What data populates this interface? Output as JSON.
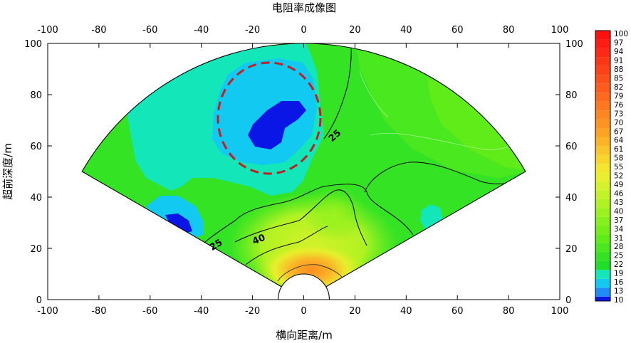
{
  "chart_data": {
    "type": "heatmap",
    "title": "电阻率成像图",
    "xlabel": "横向距离/m",
    "ylabel": "超前深度/m",
    "xlim": [
      -100,
      100
    ],
    "ylim": [
      0,
      100
    ],
    "xticks": [
      -100,
      -80,
      -60,
      -40,
      -20,
      0,
      20,
      40,
      60,
      80,
      100
    ],
    "yticks": [
      0,
      20,
      40,
      60,
      80,
      100
    ],
    "fan": {
      "apex": [
        0,
        0
      ],
      "radius": 100,
      "half_angle_deg": 60,
      "inner_radius": 10
    },
    "colorbar": {
      "ticks": [
        10,
        13,
        16,
        19,
        22,
        25,
        28,
        31,
        34,
        37,
        40,
        43,
        46,
        49,
        52,
        55,
        58,
        61,
        64,
        67,
        70,
        73,
        76,
        79,
        82,
        85,
        88,
        91,
        94,
        97,
        100
      ],
      "colors": [
        "#0a16e6",
        "#1f8cf5",
        "#12c9f2",
        "#13e6b8",
        "#21de2a",
        "#33e324",
        "#4ae81e",
        "#5fec18",
        "#72ee18",
        "#86f01c",
        "#9cf21f",
        "#b0f222",
        "#c3f227",
        "#d6f22b",
        "#e8ef2c",
        "#f4e62e",
        "#f8d52c",
        "#fac52a",
        "#fbb428",
        "#fca326",
        "#fc9424",
        "#fd8622",
        "#fd7820",
        "#fd6a1e",
        "#fd5c1c",
        "#fd4f1a",
        "#fd4218",
        "#fd3616",
        "#fd2914",
        "#fd1d12",
        "#fd1010"
      ]
    },
    "contour_labels": [
      "25",
      "25",
      "40"
    ],
    "annotation": "dashed red ellipse marking low-resistivity anomaly"
  }
}
